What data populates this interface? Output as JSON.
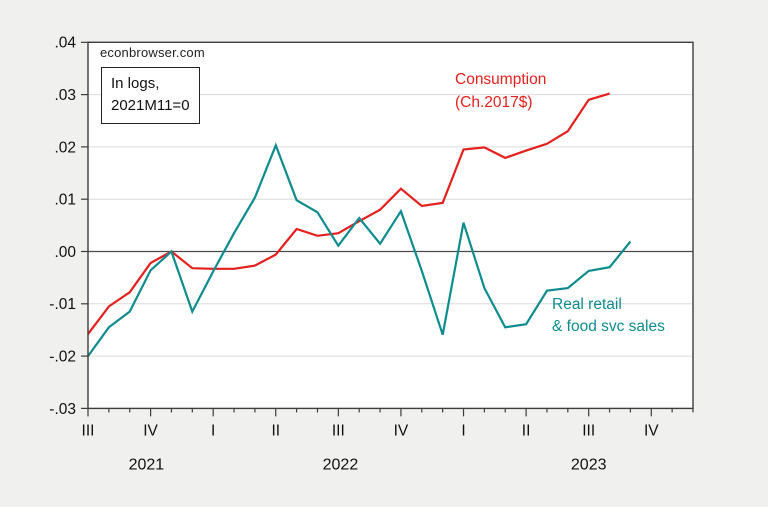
{
  "page": {
    "background": "#f0f0ee",
    "plot_background": "#ffffff",
    "frame_color": "#3c3c3c",
    "grid_color": "#dcdcdc",
    "zero_line_color": "#4a4a4a",
    "text_color": "#111111"
  },
  "annotations": {
    "watermark": "econbrowser.com",
    "note_line1": "In logs,",
    "note_line2": "2021M11=0",
    "consumption_label_line1": "Consumption",
    "consumption_label_line2": "(Ch.2017$)",
    "retail_label_line1": "Real retail",
    "retail_label_line2": "& food svc sales"
  },
  "chart_data": {
    "type": "line",
    "title": "",
    "xlabel": "",
    "ylabel": "",
    "note": "In logs, 2021M11=0",
    "x_unit": "month",
    "x_axis_start": "2021-07",
    "x_axis_end": "2023-12",
    "ylim": [
      -0.03,
      0.04
    ],
    "ytick_step": 0.01,
    "ytick_labels": [
      ".04",
      ".03",
      ".02",
      ".01",
      ".00",
      "-.01",
      "-.02",
      "-.03"
    ],
    "grid": true,
    "zero_line": true,
    "legend_position": "inline-labels",
    "series": [
      {
        "name": "Consumption (Ch.2017$)",
        "color": "#e3201d",
        "x": [
          "2021-07",
          "2021-08",
          "2021-09",
          "2021-10",
          "2021-11",
          "2021-12",
          "2022-01",
          "2022-02",
          "2022-03",
          "2022-04",
          "2022-05",
          "2022-06",
          "2022-07",
          "2022-08",
          "2022-09",
          "2022-10",
          "2022-11",
          "2022-12",
          "2023-01",
          "2023-02",
          "2023-03",
          "2023-04",
          "2023-05",
          "2023-06",
          "2023-07",
          "2023-08"
        ],
        "values": [
          -0.0158,
          -0.0105,
          -0.0078,
          -0.0022,
          0.0,
          -0.0032,
          -0.0033,
          -0.0033,
          -0.0027,
          -0.0006,
          0.0043,
          0.003,
          0.0035,
          0.0058,
          0.008,
          0.012,
          0.0087,
          0.0093,
          0.0195,
          0.0199,
          0.0179,
          0.0193,
          0.0206,
          0.023,
          0.029,
          0.0302
        ]
      },
      {
        "name": "Real retail & food svc sales",
        "color": "#0e8c8e",
        "x": [
          "2021-07",
          "2021-08",
          "2021-09",
          "2021-10",
          "2021-11",
          "2021-12",
          "2022-01",
          "2022-02",
          "2022-03",
          "2022-04",
          "2022-05",
          "2022-06",
          "2022-07",
          "2022-08",
          "2022-09",
          "2022-10",
          "2022-11",
          "2022-12",
          "2023-01",
          "2023-02",
          "2023-03",
          "2023-04",
          "2023-05",
          "2023-06",
          "2023-07",
          "2023-08",
          "2023-09"
        ],
        "values": [
          -0.02,
          -0.0145,
          -0.0115,
          -0.0036,
          0.0,
          -0.0115,
          -0.0038,
          0.0035,
          0.0103,
          0.0203,
          0.0098,
          0.0075,
          0.0011,
          0.0064,
          0.0015,
          0.0077,
          -0.0037,
          -0.0159,
          0.0055,
          -0.007,
          -0.0145,
          -0.0139,
          -0.0075,
          -0.007,
          -0.0037,
          -0.003,
          0.0019
        ]
      }
    ],
    "x_quarter_labels": [
      {
        "label": "III",
        "month_index": 0
      },
      {
        "label": "IV",
        "month_index": 3
      },
      {
        "label": "I",
        "month_index": 6
      },
      {
        "label": "II",
        "month_index": 9
      },
      {
        "label": "III",
        "month_index": 12
      },
      {
        "label": "IV",
        "month_index": 15
      },
      {
        "label": "I",
        "month_index": 18
      },
      {
        "label": "II",
        "month_index": 21
      },
      {
        "label": "III",
        "month_index": 24
      },
      {
        "label": "IV",
        "month_index": 27
      }
    ],
    "x_year_labels": [
      {
        "label": "2021",
        "month_index": 2.8
      },
      {
        "label": "2022",
        "month_index": 12.1
      },
      {
        "label": "2023",
        "month_index": 24.0
      }
    ]
  }
}
